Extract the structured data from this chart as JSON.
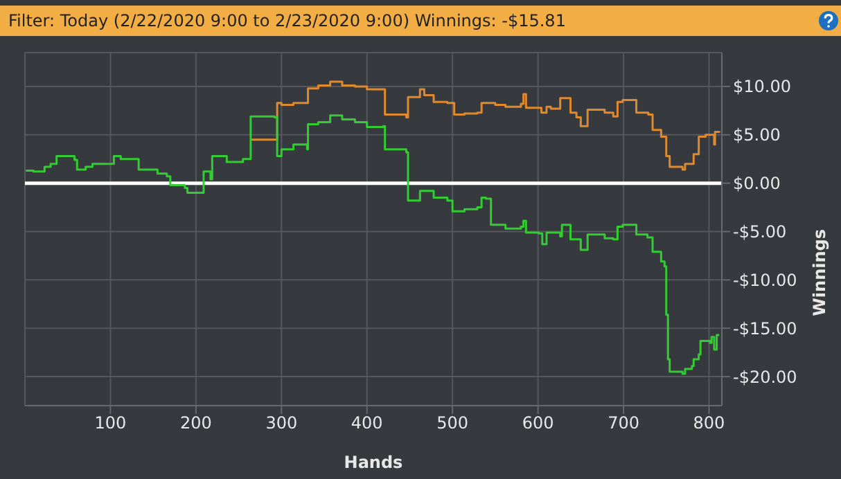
{
  "chart_data": {
    "type": "step",
    "title": "Filter: Today (2/22/2020 9:00 to 2/23/2020 9:00) Winnings: -$15.81",
    "xlabel": "Hands",
    "ylabel": "Winnings",
    "xlim": [
      0,
      815
    ],
    "xticks": [
      100,
      200,
      300,
      400,
      500,
      600,
      700,
      800
    ],
    "ylim": [
      -23,
      13.5
    ],
    "yticks": [
      {
        "value": -20,
        "label": "-$20.00"
      },
      {
        "value": -15,
        "label": "-$15.00"
      },
      {
        "value": -10,
        "label": "-$10.00"
      },
      {
        "value": -5,
        "label": "-$5.00"
      },
      {
        "value": 0,
        "label": "$0.00"
      },
      {
        "value": 5,
        "label": "$5.00"
      },
      {
        "value": 10,
        "label": "$10.00"
      }
    ],
    "grid": true,
    "legend": false,
    "ref_lines": [
      {
        "axis": "y",
        "value": 0,
        "color": "#ffffff"
      }
    ],
    "series": [
      {
        "color": "#e08a30",
        "x": [
          264,
          295,
          300,
          314,
          331,
          343,
          357,
          371,
          386,
          400,
          419,
          421,
          446,
          448,
          462,
          467,
          478,
          494,
          502,
          514,
          529,
          534,
          544,
          550,
          562,
          580,
          583,
          586,
          604,
          610,
          615,
          626,
          638,
          645,
          650,
          658,
          678,
          688,
          693,
          699,
          715,
          729,
          734,
          744,
          750,
          754,
          769,
          772,
          782,
          788,
          796,
          806,
          807,
          812
        ],
        "values": [
          4.5,
          8.3,
          8.1,
          8.3,
          9.8,
          10.1,
          10.5,
          10.1,
          10.0,
          9.7,
          9.7,
          7.1,
          6.8,
          8.9,
          9.7,
          9.1,
          8.4,
          8.3,
          7.1,
          7.2,
          7.3,
          8.3,
          8.3,
          8.1,
          7.9,
          8.2,
          9.2,
          7.8,
          7.3,
          7.9,
          7.7,
          8.8,
          7.3,
          6.8,
          5.9,
          7.6,
          7.3,
          6.9,
          8.4,
          8.6,
          7.3,
          7.1,
          5.5,
          4.8,
          2.8,
          1.7,
          1.4,
          2.0,
          3.0,
          4.8,
          5.0,
          4.0,
          5.3,
          5.4
        ]
      },
      {
        "color": "#33cc33",
        "x": [
          1,
          10,
          23,
          30,
          37,
          58,
          61,
          71,
          79,
          98,
          104,
          112,
          128,
          133,
          155,
          166,
          170,
          187,
          190,
          208,
          209,
          217,
          219,
          230,
          236,
          252,
          255,
          262,
          264,
          292,
          295,
          300,
          314,
          330,
          331,
          343,
          357,
          371,
          386,
          400,
          419,
          421,
          446,
          448,
          462,
          478,
          494,
          500,
          514,
          529,
          534,
          539,
          545,
          562,
          580,
          583,
          586,
          601,
          605,
          610,
          626,
          628,
          638,
          650,
          658,
          678,
          688,
          693,
          699,
          715,
          728,
          734,
          744,
          748,
          750,
          752,
          754,
          761,
          769,
          772,
          780,
          782,
          788,
          790,
          801,
          803,
          806,
          809,
          812
        ],
        "values": [
          1.3,
          1.2,
          1.7,
          2.0,
          2.8,
          2.4,
          1.4,
          1.7,
          2.0,
          2.0,
          2.8,
          2.5,
          2.5,
          1.4,
          1.0,
          0.7,
          -0.2,
          -0.5,
          -1.0,
          -1.0,
          1.2,
          0.4,
          2.8,
          2.8,
          2.2,
          2.2,
          2.5,
          2.5,
          6.9,
          6.8,
          2.8,
          3.5,
          4.0,
          3.5,
          6.1,
          6.3,
          7.0,
          6.6,
          6.3,
          5.8,
          5.9,
          3.5,
          3.2,
          -1.8,
          -0.8,
          -1.5,
          -1.8,
          -2.9,
          -2.7,
          -2.5,
          -1.5,
          -1.6,
          -4.3,
          -4.7,
          -4.5,
          -3.9,
          -5.1,
          -5.2,
          -6.3,
          -5.1,
          -5.5,
          -4.3,
          -5.8,
          -6.9,
          -5.3,
          -5.7,
          -5.8,
          -4.5,
          -4.3,
          -5.3,
          -5.6,
          -7.1,
          -8.1,
          -8.6,
          -13.6,
          -18.2,
          -19.5,
          -19.5,
          -19.7,
          -19.2,
          -18.9,
          -18.2,
          -17.7,
          -16.3,
          -16.5,
          -15.9,
          -17.2,
          -15.7,
          -15.7
        ]
      }
    ]
  }
}
